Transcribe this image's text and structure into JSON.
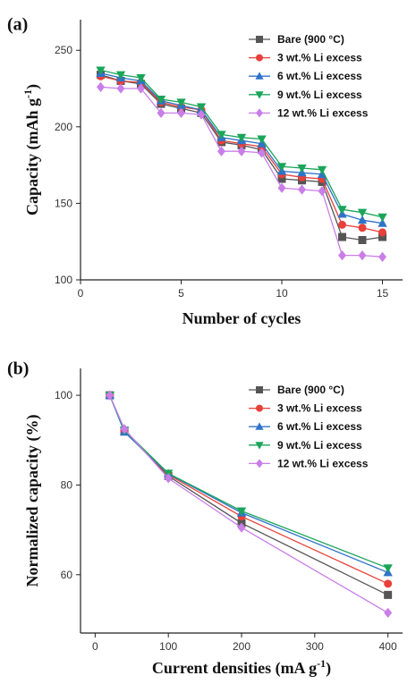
{
  "chart_data": [
    {
      "panel": "(a)",
      "type": "line",
      "xlabel": "Number of cycles",
      "ylabel": "Capacity (mAh g",
      "ylabel_sup": "-1",
      "ylabel_end": ")",
      "xlim": [
        0,
        16
      ],
      "ylim": [
        100,
        270
      ],
      "xticks": [
        0,
        5,
        10,
        15
      ],
      "yticks": [
        100,
        150,
        200,
        250
      ],
      "legend_position": "top-right",
      "x": [
        1,
        2,
        3,
        4,
        5,
        6,
        7,
        8,
        9,
        10,
        11,
        12,
        13,
        14,
        15
      ],
      "series": [
        {
          "name": "Bare (900 °C)",
          "color": "#555555",
          "marker": "square",
          "values": [
            234,
            230,
            228,
            215,
            212,
            209,
            190,
            188,
            185,
            166,
            165,
            164,
            128,
            126,
            128
          ]
        },
        {
          "name": "3 wt.% Li excess",
          "color": "#e8403a",
          "marker": "circle",
          "values": [
            233,
            230,
            229,
            216,
            213,
            211,
            191,
            189,
            187,
            169,
            167,
            166,
            136,
            134,
            131
          ]
        },
        {
          "name": "6 wt.% Li excess",
          "color": "#2f73c9",
          "marker": "triangle-up",
          "values": [
            235,
            232,
            230,
            217,
            214,
            211,
            193,
            191,
            189,
            171,
            170,
            169,
            143,
            139,
            137
          ]
        },
        {
          "name": "9 wt.% Li excess",
          "color": "#1aa55a",
          "marker": "triangle-down",
          "values": [
            237,
            234,
            232,
            218,
            216,
            213,
            195,
            193,
            192,
            174,
            173,
            172,
            146,
            144,
            141
          ]
        },
        {
          "name": "12 wt.% Li excess",
          "color": "#c97ee8",
          "marker": "diamond",
          "values": [
            226,
            225,
            225,
            209,
            209,
            208,
            184,
            184,
            183,
            160,
            159,
            158,
            116,
            116,
            115
          ]
        }
      ]
    },
    {
      "panel": "(b)",
      "type": "line",
      "xlabel": "Current densities (mA g",
      "xlabel_sup": "-1",
      "xlabel_end": ")",
      "ylabel": "Normalized capacity (%)",
      "xlim": [
        -20,
        420
      ],
      "ylim": [
        47,
        106
      ],
      "xticks": [
        0,
        100,
        200,
        300,
        400
      ],
      "yticks": [
        60,
        80,
        100
      ],
      "legend_position": "top-right",
      "x": [
        20,
        40,
        100,
        200,
        400
      ],
      "series": [
        {
          "name": "Bare (900 °C)",
          "color": "#555555",
          "marker": "square",
          "values": [
            100,
            92.0,
            82.0,
            71.5,
            55.5
          ]
        },
        {
          "name": "3 wt.% Li excess",
          "color": "#e8403a",
          "marker": "circle",
          "values": [
            100,
            92.0,
            82.3,
            73.0,
            58.0
          ]
        },
        {
          "name": "6 wt.% Li excess",
          "color": "#2f73c9",
          "marker": "triangle-up",
          "values": [
            100,
            91.8,
            82.5,
            73.8,
            60.5
          ]
        },
        {
          "name": "9 wt.% Li excess",
          "color": "#1aa55a",
          "marker": "triangle-down",
          "values": [
            100,
            92.2,
            82.6,
            74.2,
            61.5
          ]
        },
        {
          "name": "12 wt.% Li excess",
          "color": "#c97ee8",
          "marker": "diamond",
          "values": [
            100,
            92.5,
            81.5,
            70.5,
            51.5
          ]
        }
      ]
    }
  ]
}
